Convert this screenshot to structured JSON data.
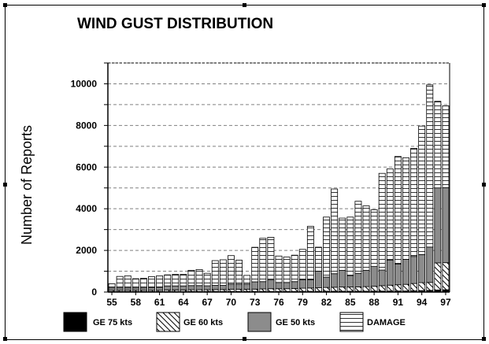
{
  "chart_data": {
    "type": "bar",
    "stacked": true,
    "title": "WIND GUST DISTRIBUTION",
    "ylabel": "Number of Reports",
    "xlabel": "",
    "ylim": [
      0,
      11000
    ],
    "yticks": [
      "0",
      "2000",
      "4000",
      "6000",
      "8000",
      "10000"
    ],
    "ytick_values": [
      0,
      2000,
      4000,
      6000,
      8000,
      10000
    ],
    "xtick_labels": [
      "55",
      "58",
      "61",
      "64",
      "67",
      "70",
      "73",
      "76",
      "79",
      "82",
      "85",
      "88",
      "91",
      "94",
      "97"
    ],
    "categories": [
      "55",
      "56",
      "57",
      "58",
      "59",
      "60",
      "61",
      "62",
      "63",
      "64",
      "65",
      "66",
      "67",
      "68",
      "69",
      "70",
      "71",
      "72",
      "73",
      "74",
      "75",
      "76",
      "77",
      "78",
      "79",
      "80",
      "81",
      "82",
      "83",
      "84",
      "85",
      "86",
      "87",
      "88",
      "89",
      "90",
      "91",
      "92",
      "93",
      "94",
      "95",
      "96",
      "97"
    ],
    "grid": "dashed horizontal",
    "legend_position": "bottom",
    "series": [
      {
        "name": "GE 75 kts",
        "pattern": "solid-black",
        "values": [
          20,
          20,
          20,
          20,
          20,
          20,
          20,
          25,
          25,
          25,
          30,
          30,
          30,
          30,
          30,
          30,
          30,
          30,
          30,
          30,
          30,
          30,
          30,
          30,
          35,
          35,
          35,
          40,
          40,
          40,
          40,
          40,
          40,
          45,
          45,
          50,
          50,
          50,
          60,
          70,
          80,
          100,
          110
        ]
      },
      {
        "name": "GE 60 kts",
        "pattern": "diagonal-hatch",
        "values": [
          60,
          60,
          60,
          60,
          60,
          60,
          60,
          70,
          70,
          70,
          80,
          80,
          80,
          90,
          90,
          100,
          100,
          100,
          110,
          120,
          130,
          130,
          130,
          140,
          150,
          160,
          170,
          180,
          190,
          200,
          200,
          210,
          220,
          230,
          260,
          280,
          300,
          320,
          350,
          380,
          380,
          1300,
          1300
        ]
      },
      {
        "name": "GE 50 kts",
        "pattern": "gray",
        "values": [
          120,
          120,
          120,
          120,
          120,
          140,
          150,
          200,
          200,
          200,
          200,
          200,
          190,
          200,
          200,
          250,
          250,
          250,
          350,
          350,
          420,
          300,
          300,
          330,
          400,
          400,
          800,
          500,
          650,
          800,
          550,
          650,
          780,
          950,
          750,
          1200,
          1000,
          1200,
          1300,
          1350,
          1700,
          3600,
          3600
        ]
      },
      {
        "name": "DAMAGE",
        "pattern": "grid-white",
        "values": [
          200,
          550,
          580,
          440,
          460,
          520,
          550,
          530,
          555,
          555,
          735,
          770,
          600,
          1190,
          1230,
          1370,
          1150,
          420,
          1660,
          2080,
          2050,
          1270,
          1220,
          1270,
          1465,
          2560,
          1150,
          2880,
          4070,
          2510,
          2810,
          3460,
          3100,
          2725,
          4645,
          4380,
          5160,
          4880,
          5190,
          6170,
          7790,
          4160,
          3930
        ]
      }
    ]
  }
}
